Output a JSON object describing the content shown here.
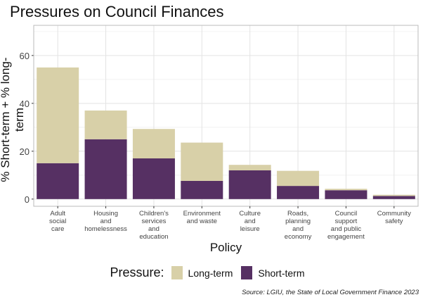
{
  "chart_data": {
    "type": "bar",
    "stacked": true,
    "title": "Pressures on Council Finances",
    "xlabel": "Policy",
    "ylabel": "% Short-term + % long-term",
    "categories": [
      "Adult\nsocial\ncare",
      "Housing\nand\nhomelessness",
      "Children's\nservices\nand\neducation",
      "Environment\nand waste",
      "Culture\nand\nleisure",
      "Roads,\nplanning\nand\neconomy",
      "Council\nsupport\nand public\nengagement",
      "Community\nsafety"
    ],
    "series": [
      {
        "name": "Short-term",
        "color": "#563063",
        "values": [
          15,
          25,
          17,
          7.6,
          12,
          5.5,
          3.7,
          1.3
        ]
      },
      {
        "name": "Long-term",
        "color": "#d8d0a8",
        "values": [
          40,
          12,
          12.3,
          16,
          2.3,
          6.3,
          0.6,
          0.5
        ]
      }
    ],
    "ylim": [
      -3,
      72.6
    ],
    "yticks": [
      0,
      20,
      40,
      60
    ],
    "grid": true,
    "legend": {
      "title": "Pressure:",
      "position": "bottom",
      "order": [
        "Long-term",
        "Short-term"
      ]
    },
    "source": "Source: LGIU, the State of Local Government Finance 2023"
  }
}
